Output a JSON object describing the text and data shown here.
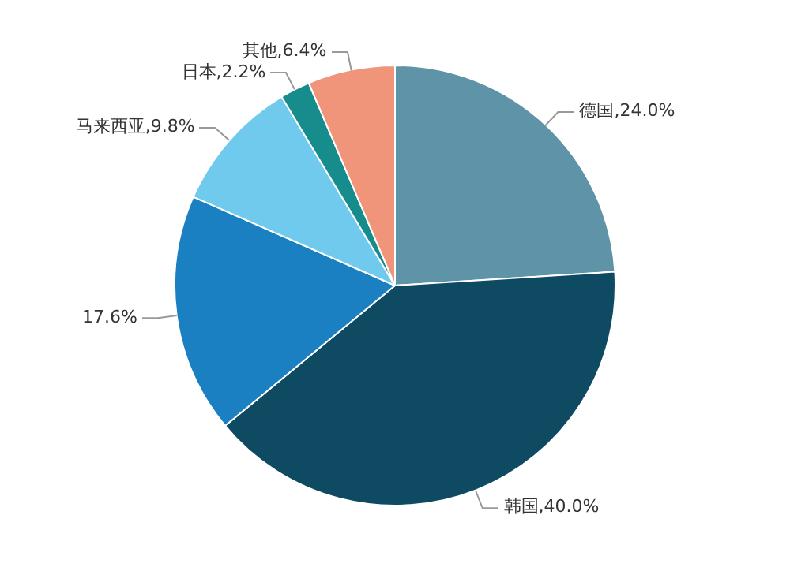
{
  "chart_data": {
    "type": "pie",
    "categories": [
      "德国",
      "韩国",
      null,
      "马来西亚",
      "日本",
      "其他"
    ],
    "values": [
      24.0,
      40.0,
      17.6,
      9.8,
      2.2,
      6.4
    ],
    "colors": [
      "#5e93a8",
      "#0f4a63",
      "#1b80c2",
      "#6fcaee",
      "#178c8c",
      "#f09579"
    ],
    "value_labels": [
      ",24.0%",
      ",40.0%",
      "17.6%",
      ",9.8%",
      ",2.2%",
      ",6.4%"
    ],
    "legend": false
  }
}
